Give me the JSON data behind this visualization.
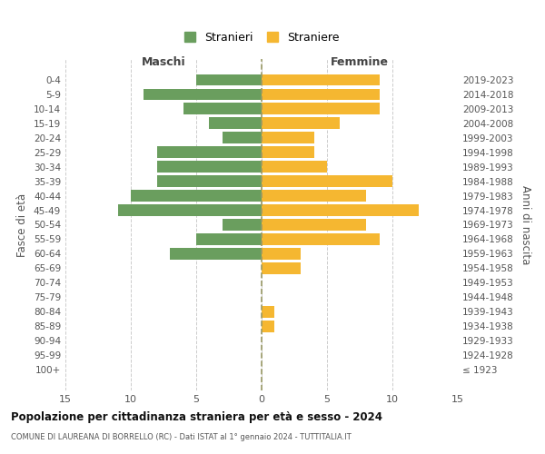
{
  "age_groups": [
    "0-4",
    "5-9",
    "10-14",
    "15-19",
    "20-24",
    "25-29",
    "30-34",
    "35-39",
    "40-44",
    "45-49",
    "50-54",
    "55-59",
    "60-64",
    "65-69",
    "70-74",
    "75-79",
    "80-84",
    "85-89",
    "90-94",
    "95-99",
    "100+"
  ],
  "birth_years": [
    "2019-2023",
    "2014-2018",
    "2009-2013",
    "2004-2008",
    "1999-2003",
    "1994-1998",
    "1989-1993",
    "1984-1988",
    "1979-1983",
    "1974-1978",
    "1969-1973",
    "1964-1968",
    "1959-1963",
    "1954-1958",
    "1949-1953",
    "1944-1948",
    "1939-1943",
    "1934-1938",
    "1929-1933",
    "1924-1928",
    "≤ 1923"
  ],
  "maschi": [
    5,
    9,
    6,
    4,
    3,
    8,
    8,
    8,
    10,
    11,
    3,
    5,
    7,
    0,
    0,
    0,
    0,
    0,
    0,
    0,
    0
  ],
  "femmine": [
    9,
    9,
    9,
    6,
    4,
    4,
    5,
    10,
    8,
    12,
    8,
    9,
    3,
    3,
    0,
    0,
    1,
    1,
    0,
    0,
    0
  ],
  "maschi_color": "#6a9e5e",
  "femmine_color": "#f5b731",
  "grid_color": "#cccccc",
  "center_line_color": "#999966",
  "title": "Popolazione per cittadinanza straniera per età e sesso - 2024",
  "subtitle": "COMUNE DI LAUREANA DI BORRELLO (RC) - Dati ISTAT al 1° gennaio 2024 - TUTTITALIA.IT",
  "xlabel_left": "Maschi",
  "xlabel_right": "Femmine",
  "ylabel_left": "Fasce di età",
  "ylabel_right": "Anni di nascita",
  "legend_stranieri": "Stranieri",
  "legend_straniere": "Straniere",
  "xlim": 15,
  "background_color": "#ffffff"
}
